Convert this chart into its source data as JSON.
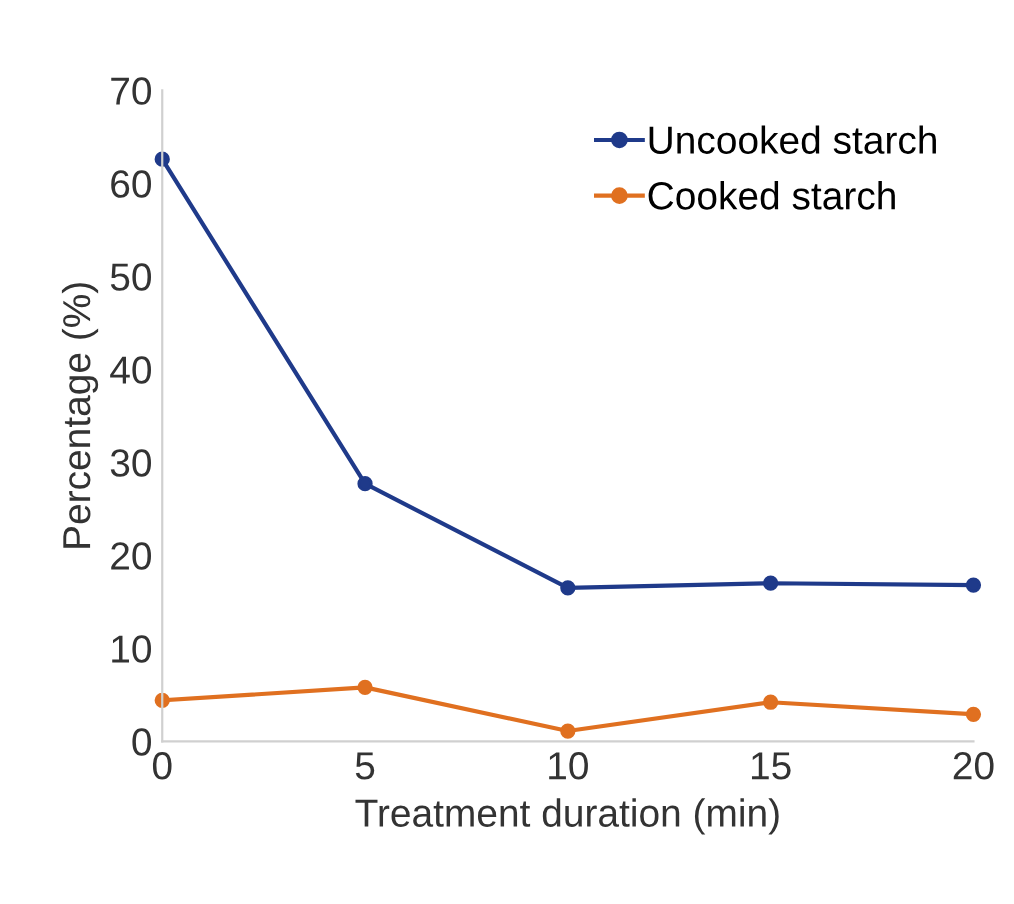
{
  "chart_data": {
    "type": "line",
    "xlabel": "Treatment duration (min)",
    "ylabel": "Percentage (%)",
    "x": [
      0,
      5,
      10,
      15,
      20
    ],
    "series": [
      {
        "name": "Uncooked starch",
        "color": "#1f3a8a",
        "values": [
          62.6,
          27.7,
          16.5,
          17.0,
          16.8
        ]
      },
      {
        "name": "Cooked starch",
        "color": "#e07020",
        "values": [
          4.4,
          5.8,
          1.1,
          4.2,
          2.9
        ]
      }
    ],
    "xlim": [
      0,
      20
    ],
    "xticks": [
      0,
      5,
      10,
      15,
      20
    ],
    "ylim": [
      0,
      70
    ],
    "yticks": [
      0,
      10,
      20,
      30,
      40,
      50,
      60,
      70
    ],
    "marker": "circle",
    "line_style": "solid",
    "legend": "top right",
    "grid": false
  }
}
